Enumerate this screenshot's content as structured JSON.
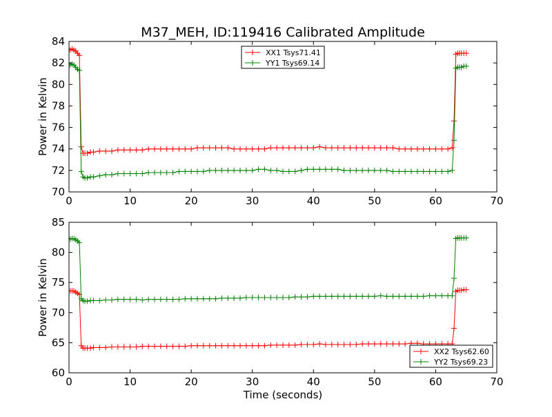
{
  "figure_title": "M37_MEH, ID:119416 Calibrated Amplitude",
  "chart_data": [
    {
      "type": "line",
      "title": "M37_MEH, ID:119416 Calibrated Amplitude",
      "xlabel": "",
      "ylabel": "Power in Kelvin",
      "xlim": [
        0,
        70
      ],
      "ylim": [
        70,
        84
      ],
      "xticks": [
        0,
        10,
        20,
        30,
        40,
        50,
        60,
        70
      ],
      "yticks": [
        70,
        72,
        74,
        76,
        78,
        80,
        82,
        84
      ],
      "grid": false,
      "legend_position": "top-center",
      "series": [
        {
          "name": "XX1 Tsys71.41",
          "color": "#ff0000",
          "marker": "+",
          "x": [
            0.2,
            0.5,
            0.8,
            1.1,
            1.4,
            1.7,
            2.0,
            2.3,
            2.6,
            3.0,
            3.5,
            4.0,
            5.0,
            6.0,
            7.0,
            8.0,
            9.0,
            10.0,
            11.0,
            12.0,
            13.0,
            14.0,
            15.0,
            16.0,
            17.0,
            18.0,
            19.0,
            20.0,
            21.0,
            22.0,
            23.0,
            24.0,
            25.0,
            26.0,
            27.0,
            28.0,
            29.0,
            30.0,
            31.0,
            32.0,
            33.0,
            34.0,
            35.0,
            36.0,
            37.0,
            38.0,
            39.0,
            40.0,
            41.0,
            42.0,
            43.0,
            44.0,
            45.0,
            46.0,
            47.0,
            48.0,
            49.0,
            50.0,
            51.0,
            52.0,
            53.0,
            54.0,
            55.0,
            56.0,
            57.0,
            58.0,
            59.0,
            60.0,
            61.0,
            62.0,
            62.7,
            63.0,
            63.3,
            63.6,
            63.9,
            64.2,
            64.6,
            65.0
          ],
          "y": [
            83.2,
            83.3,
            83.2,
            83.1,
            82.9,
            82.7,
            74.2,
            73.6,
            73.6,
            73.6,
            73.7,
            73.7,
            73.8,
            73.8,
            73.8,
            73.9,
            73.9,
            73.9,
            73.9,
            73.9,
            74.0,
            74.0,
            74.0,
            74.0,
            74.0,
            74.0,
            74.0,
            74.0,
            74.1,
            74.1,
            74.1,
            74.1,
            74.1,
            74.1,
            74.0,
            74.0,
            74.0,
            74.0,
            74.0,
            74.0,
            74.1,
            74.1,
            74.1,
            74.1,
            74.1,
            74.1,
            74.1,
            74.1,
            74.2,
            74.1,
            74.1,
            74.1,
            74.1,
            74.1,
            74.1,
            74.1,
            74.1,
            74.1,
            74.1,
            74.1,
            74.1,
            74.0,
            74.0,
            74.0,
            74.0,
            74.0,
            74.0,
            74.0,
            74.0,
            74.0,
            74.1,
            76.6,
            82.8,
            82.9,
            82.9,
            82.9,
            82.9,
            82.9
          ]
        },
        {
          "name": "YY1 Tsys69.14",
          "color": "#008000",
          "marker": "+",
          "x": [
            0.2,
            0.5,
            0.8,
            1.1,
            1.4,
            1.7,
            2.0,
            2.3,
            2.6,
            3.0,
            3.5,
            4.0,
            5.0,
            6.0,
            7.0,
            8.0,
            9.0,
            10.0,
            11.0,
            12.0,
            13.0,
            14.0,
            15.0,
            16.0,
            17.0,
            18.0,
            19.0,
            20.0,
            21.0,
            22.0,
            23.0,
            24.0,
            25.0,
            26.0,
            27.0,
            28.0,
            29.0,
            30.0,
            31.0,
            32.0,
            33.0,
            34.0,
            35.0,
            36.0,
            37.0,
            38.0,
            39.0,
            40.0,
            41.0,
            42.0,
            43.0,
            44.0,
            45.0,
            46.0,
            47.0,
            48.0,
            49.0,
            50.0,
            51.0,
            52.0,
            53.0,
            54.0,
            55.0,
            56.0,
            57.0,
            58.0,
            59.0,
            60.0,
            61.0,
            62.0,
            62.7,
            63.0,
            63.3,
            63.6,
            63.9,
            64.2,
            64.6,
            65.0
          ],
          "y": [
            81.8,
            81.9,
            81.8,
            81.6,
            81.4,
            81.3,
            71.9,
            71.4,
            71.3,
            71.3,
            71.4,
            71.4,
            71.5,
            71.6,
            71.6,
            71.7,
            71.7,
            71.7,
            71.7,
            71.7,
            71.8,
            71.8,
            71.8,
            71.8,
            71.8,
            71.9,
            71.9,
            71.9,
            71.9,
            71.9,
            72.0,
            72.0,
            72.0,
            72.0,
            72.0,
            72.0,
            72.0,
            72.0,
            72.1,
            72.1,
            72.0,
            72.0,
            71.9,
            71.9,
            71.9,
            72.0,
            72.1,
            72.1,
            72.1,
            72.1,
            72.1,
            72.1,
            72.0,
            72.0,
            72.0,
            72.0,
            72.0,
            72.0,
            72.0,
            72.0,
            71.9,
            71.9,
            71.9,
            71.9,
            71.9,
            71.9,
            71.9,
            71.9,
            71.9,
            71.9,
            72.0,
            74.8,
            81.5,
            81.6,
            81.6,
            81.6,
            81.7,
            81.7
          ]
        }
      ]
    },
    {
      "type": "line",
      "title": "",
      "xlabel": "Time (seconds)",
      "ylabel": "Power in Kelvin",
      "xlim": [
        0,
        70
      ],
      "ylim": [
        60,
        85
      ],
      "xticks": [
        0,
        10,
        20,
        30,
        40,
        50,
        60,
        70
      ],
      "yticks": [
        60,
        65,
        70,
        75,
        80,
        85
      ],
      "grid": false,
      "legend_position": "bottom-right",
      "series": [
        {
          "name": "XX2 Tsys62.60",
          "color": "#ff0000",
          "marker": "+",
          "x": [
            0.2,
            0.5,
            0.8,
            1.1,
            1.4,
            1.7,
            2.0,
            2.3,
            2.6,
            3.0,
            3.5,
            4.0,
            5.0,
            6.0,
            7.0,
            8.0,
            9.0,
            10.0,
            11.0,
            12.0,
            13.0,
            14.0,
            15.0,
            16.0,
            17.0,
            18.0,
            19.0,
            20.0,
            21.0,
            22.0,
            23.0,
            24.0,
            25.0,
            26.0,
            27.0,
            28.0,
            29.0,
            30.0,
            31.0,
            32.0,
            33.0,
            34.0,
            35.0,
            36.0,
            37.0,
            38.0,
            39.0,
            40.0,
            41.0,
            42.0,
            43.0,
            44.0,
            45.0,
            46.0,
            47.0,
            48.0,
            49.0,
            50.0,
            51.0,
            52.0,
            53.0,
            54.0,
            55.0,
            56.0,
            57.0,
            58.0,
            59.0,
            60.0,
            61.0,
            62.0,
            62.7,
            63.0,
            63.3,
            63.6,
            63.9,
            64.2,
            64.6,
            65.0
          ],
          "y": [
            73.6,
            73.6,
            73.6,
            73.4,
            73.2,
            73.0,
            64.5,
            64.1,
            64.1,
            64.1,
            64.1,
            64.2,
            64.2,
            64.2,
            64.3,
            64.3,
            64.3,
            64.3,
            64.3,
            64.4,
            64.4,
            64.4,
            64.4,
            64.4,
            64.4,
            64.4,
            64.4,
            64.5,
            64.5,
            64.5,
            64.5,
            64.5,
            64.5,
            64.5,
            64.5,
            64.5,
            64.5,
            64.5,
            64.5,
            64.5,
            64.6,
            64.6,
            64.6,
            64.6,
            64.6,
            64.7,
            64.7,
            64.7,
            64.8,
            64.7,
            64.7,
            64.7,
            64.7,
            64.7,
            64.7,
            64.8,
            64.8,
            64.8,
            64.8,
            64.8,
            64.8,
            64.8,
            64.8,
            64.9,
            64.9,
            64.8,
            64.8,
            64.8,
            64.8,
            64.8,
            64.8,
            67.4,
            73.5,
            73.7,
            73.7,
            73.7,
            73.8,
            73.8
          ]
        },
        {
          "name": "YY2 Tsys69.23",
          "color": "#008000",
          "marker": "+",
          "x": [
            0.2,
            0.5,
            0.8,
            1.1,
            1.4,
            1.7,
            2.0,
            2.3,
            2.6,
            3.0,
            3.5,
            4.0,
            5.0,
            6.0,
            7.0,
            8.0,
            9.0,
            10.0,
            11.0,
            12.0,
            13.0,
            14.0,
            15.0,
            16.0,
            17.0,
            18.0,
            19.0,
            20.0,
            21.0,
            22.0,
            23.0,
            24.0,
            25.0,
            26.0,
            27.0,
            28.0,
            29.0,
            30.0,
            31.0,
            32.0,
            33.0,
            34.0,
            35.0,
            36.0,
            37.0,
            38.0,
            39.0,
            40.0,
            41.0,
            42.0,
            43.0,
            44.0,
            45.0,
            46.0,
            47.0,
            48.0,
            49.0,
            50.0,
            51.0,
            52.0,
            53.0,
            54.0,
            55.0,
            56.0,
            57.0,
            58.0,
            59.0,
            60.0,
            61.0,
            62.0,
            62.7,
            63.0,
            63.3,
            63.6,
            63.9,
            64.2,
            64.6,
            65.0
          ],
          "y": [
            82.2,
            82.3,
            82.3,
            82.1,
            81.9,
            81.6,
            72.3,
            72.0,
            71.9,
            71.9,
            72.0,
            72.0,
            72.0,
            72.1,
            72.1,
            72.2,
            72.2,
            72.2,
            72.2,
            72.1,
            72.2,
            72.2,
            72.2,
            72.2,
            72.2,
            72.2,
            72.3,
            72.3,
            72.3,
            72.3,
            72.3,
            72.3,
            72.4,
            72.4,
            72.4,
            72.4,
            72.5,
            72.5,
            72.5,
            72.5,
            72.5,
            72.5,
            72.5,
            72.5,
            72.6,
            72.6,
            72.6,
            72.7,
            72.7,
            72.7,
            72.7,
            72.7,
            72.7,
            72.7,
            72.7,
            72.7,
            72.7,
            72.7,
            72.8,
            72.7,
            72.7,
            72.7,
            72.7,
            72.7,
            72.7,
            72.7,
            72.8,
            72.8,
            72.8,
            72.8,
            72.8,
            75.7,
            82.3,
            82.4,
            82.4,
            82.4,
            82.4,
            82.4
          ]
        }
      ]
    }
  ]
}
